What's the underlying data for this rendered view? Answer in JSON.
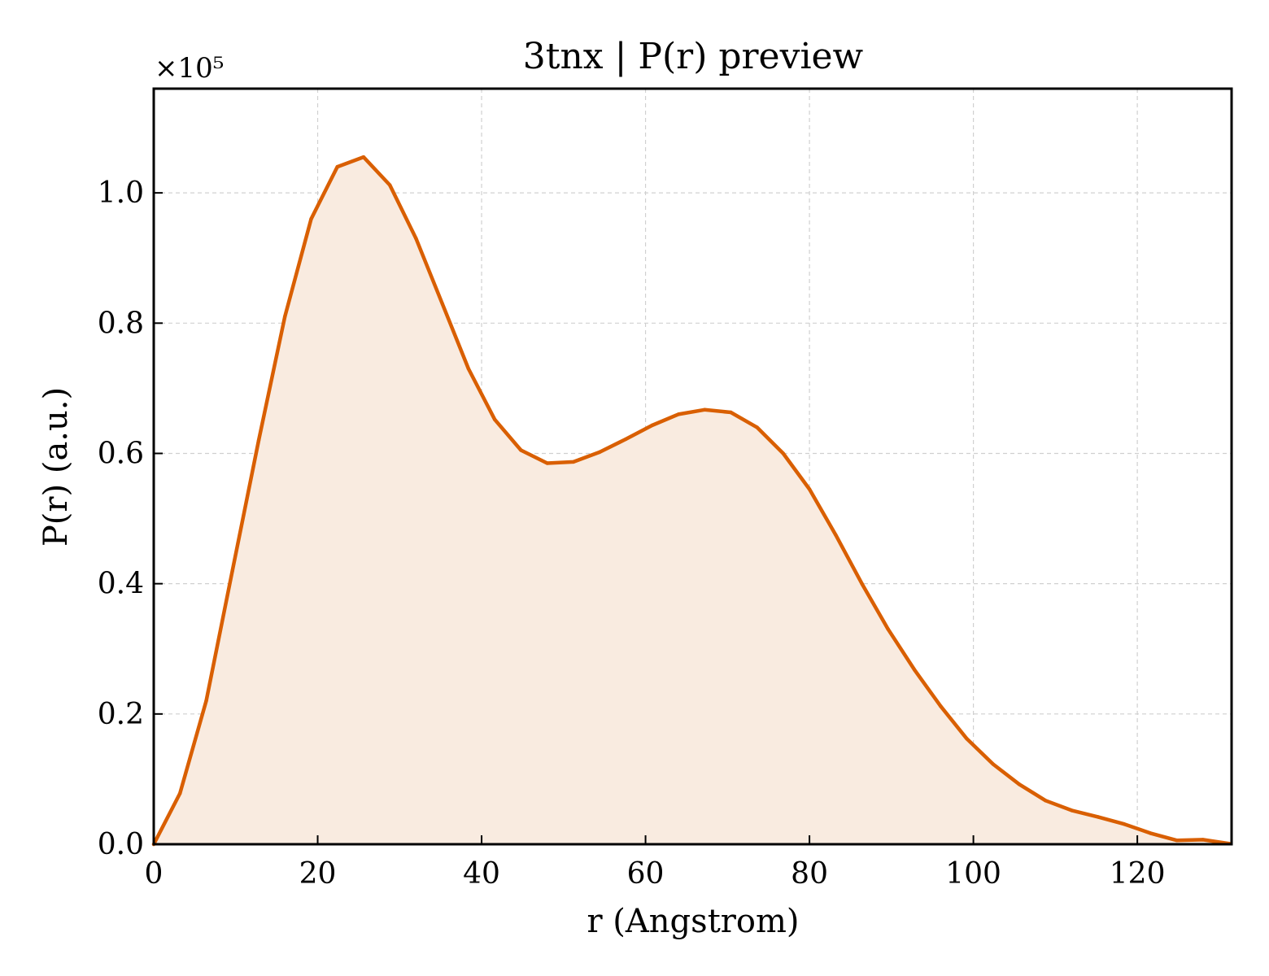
{
  "chart_data": {
    "type": "area",
    "title": "3tnx | P(r) preview",
    "xlabel": "r (Angstrom)",
    "ylabel": "P(r) (a.u.)",
    "y_offset_label": "×10⁵",
    "xlim": [
      0,
      131.5
    ],
    "ylim": [
      0,
      1.16
    ],
    "x_ticks": [
      0,
      20,
      40,
      60,
      80,
      100,
      120
    ],
    "x_tick_labels": [
      "0",
      "20",
      "40",
      "60",
      "80",
      "100",
      "120"
    ],
    "y_ticks": [
      0.0,
      0.2,
      0.4,
      0.6,
      0.8,
      1.0
    ],
    "y_tick_labels": [
      "0.0",
      "0.2",
      "0.4",
      "0.6",
      "0.8",
      "1.0"
    ],
    "grid": true,
    "colors": {
      "line": "#d95f02",
      "fill": "#f9ebe0"
    },
    "series": [
      {
        "x": [
          0,
          3.2,
          6.4,
          9.6,
          12.8,
          16.0,
          19.2,
          22.4,
          25.6,
          28.8,
          32.0,
          35.2,
          38.4,
          41.6,
          44.8,
          48.0,
          51.2,
          54.4,
          57.6,
          60.8,
          64.0,
          67.2,
          70.4,
          73.6,
          76.8,
          80.0,
          83.2,
          86.4,
          89.6,
          92.8,
          96.0,
          99.2,
          102.4,
          105.6,
          108.8,
          112.0,
          115.2,
          118.4,
          121.6,
          124.8,
          128.0,
          131.2
        ],
        "values": [
          0.0,
          0.078,
          0.22,
          0.42,
          0.62,
          0.81,
          0.96,
          1.04,
          1.055,
          1.012,
          0.93,
          0.83,
          0.73,
          0.652,
          0.605,
          0.585,
          0.587,
          0.602,
          0.622,
          0.643,
          0.66,
          0.667,
          0.663,
          0.64,
          0.6,
          0.545,
          0.475,
          0.4,
          0.33,
          0.268,
          0.212,
          0.162,
          0.123,
          0.092,
          0.067,
          0.052,
          0.042,
          0.031,
          0.017,
          0.006,
          0.007,
          0.001
        ]
      }
    ]
  }
}
